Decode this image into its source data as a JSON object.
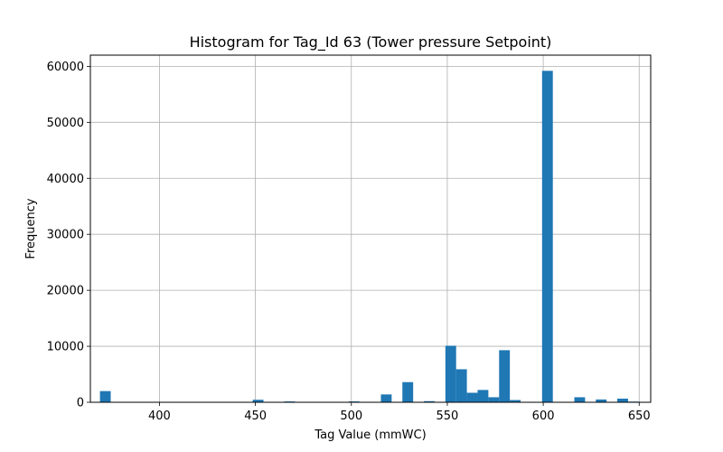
{
  "chart_data": {
    "type": "bar",
    "title": "Histogram for Tag_Id 63 (Tower pressure Setpoint)",
    "xlabel": "Tag Value (mmWC)",
    "ylabel": "Frequency",
    "xlim": [
      364,
      656
    ],
    "ylim": [
      0,
      62000
    ],
    "xticks": [
      400,
      450,
      500,
      550,
      600,
      650
    ],
    "yticks": [
      0,
      10000,
      20000,
      30000,
      40000,
      50000,
      60000
    ],
    "grid": true,
    "bar_color": "#1f77b4",
    "bin_width": 5.6,
    "bins": [
      {
        "x0": 369.0,
        "value": 2000
      },
      {
        "x0": 448.6,
        "value": 450
      },
      {
        "x0": 465.0,
        "value": 150
      },
      {
        "x0": 498.6,
        "value": 150
      },
      {
        "x0": 515.4,
        "value": 1400
      },
      {
        "x0": 526.6,
        "value": 3600
      },
      {
        "x0": 537.8,
        "value": 200
      },
      {
        "x0": 549.0,
        "value": 10100
      },
      {
        "x0": 554.6,
        "value": 5900
      },
      {
        "x0": 560.2,
        "value": 1700
      },
      {
        "x0": 565.8,
        "value": 2200
      },
      {
        "x0": 571.4,
        "value": 900
      },
      {
        "x0": 577.0,
        "value": 9300
      },
      {
        "x0": 582.6,
        "value": 400
      },
      {
        "x0": 599.4,
        "value": 59200
      },
      {
        "x0": 616.2,
        "value": 900
      },
      {
        "x0": 627.4,
        "value": 500
      },
      {
        "x0": 638.6,
        "value": 650
      },
      {
        "x0": 644.2,
        "value": 120
      }
    ]
  }
}
